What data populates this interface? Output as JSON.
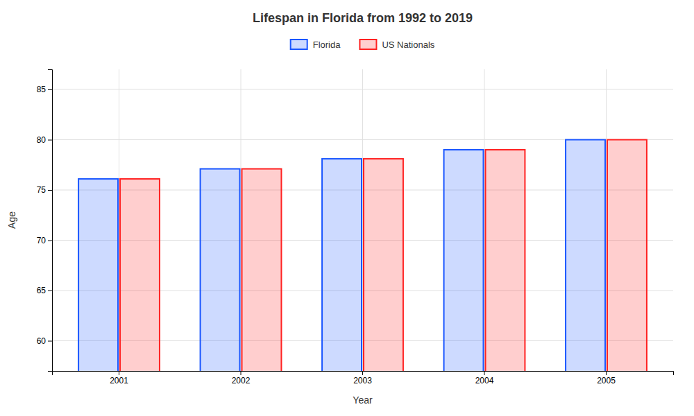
{
  "chart_data": {
    "type": "bar",
    "title": "Lifespan in Florida from 1992 to 2019",
    "x_label": "Year",
    "y_label": "Age",
    "categories": [
      "2001",
      "2002",
      "2003",
      "2004",
      "2005"
    ],
    "series": [
      {
        "name": "Florida",
        "color": "#1a56ff",
        "values": [
          76.1,
          77.1,
          78.1,
          79.0,
          80.0
        ]
      },
      {
        "name": "US Nationals",
        "color": "#ff2222",
        "values": [
          76.1,
          77.1,
          78.1,
          79.0,
          80.0
        ]
      }
    ],
    "ylim": [
      57,
      87
    ],
    "yticks": [
      60,
      65,
      70,
      75,
      80,
      85
    ],
    "grid": true,
    "legend": "top"
  }
}
